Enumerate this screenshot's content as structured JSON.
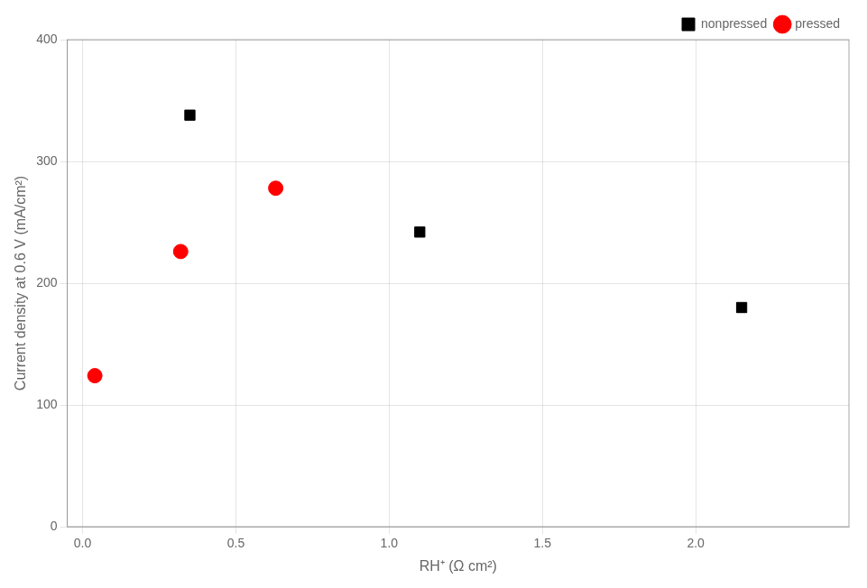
{
  "chart_data": {
    "type": "scatter",
    "xlabel": "RH⁺ (Ω cm²)",
    "ylabel": "Current density at 0.6 V (mA/cm²)",
    "series": [
      {
        "name": "nonpressed",
        "color": "#000000",
        "marker": "square",
        "x": [
          0.35,
          1.1,
          2.15
        ],
        "values": [
          338,
          242,
          180
        ]
      },
      {
        "name": "pressed",
        "color": "#ff0000",
        "marker": "circle",
        "x": [
          0.04,
          0.32,
          0.63
        ],
        "values": [
          124,
          226,
          278
        ]
      }
    ],
    "xlim": [
      -0.05,
      2.5
    ],
    "ylim": [
      0,
      400
    ],
    "xticks": [
      {
        "value": 0.0,
        "label": "0.0"
      },
      {
        "value": 0.5,
        "label": "0.5"
      },
      {
        "value": 1.0,
        "label": "1.0"
      },
      {
        "value": 1.5,
        "label": "1.5"
      },
      {
        "value": 2.0,
        "label": "2.0"
      }
    ],
    "yticks": [
      0,
      100,
      200,
      300,
      400
    ],
    "grid": true,
    "legend": "upper right"
  }
}
